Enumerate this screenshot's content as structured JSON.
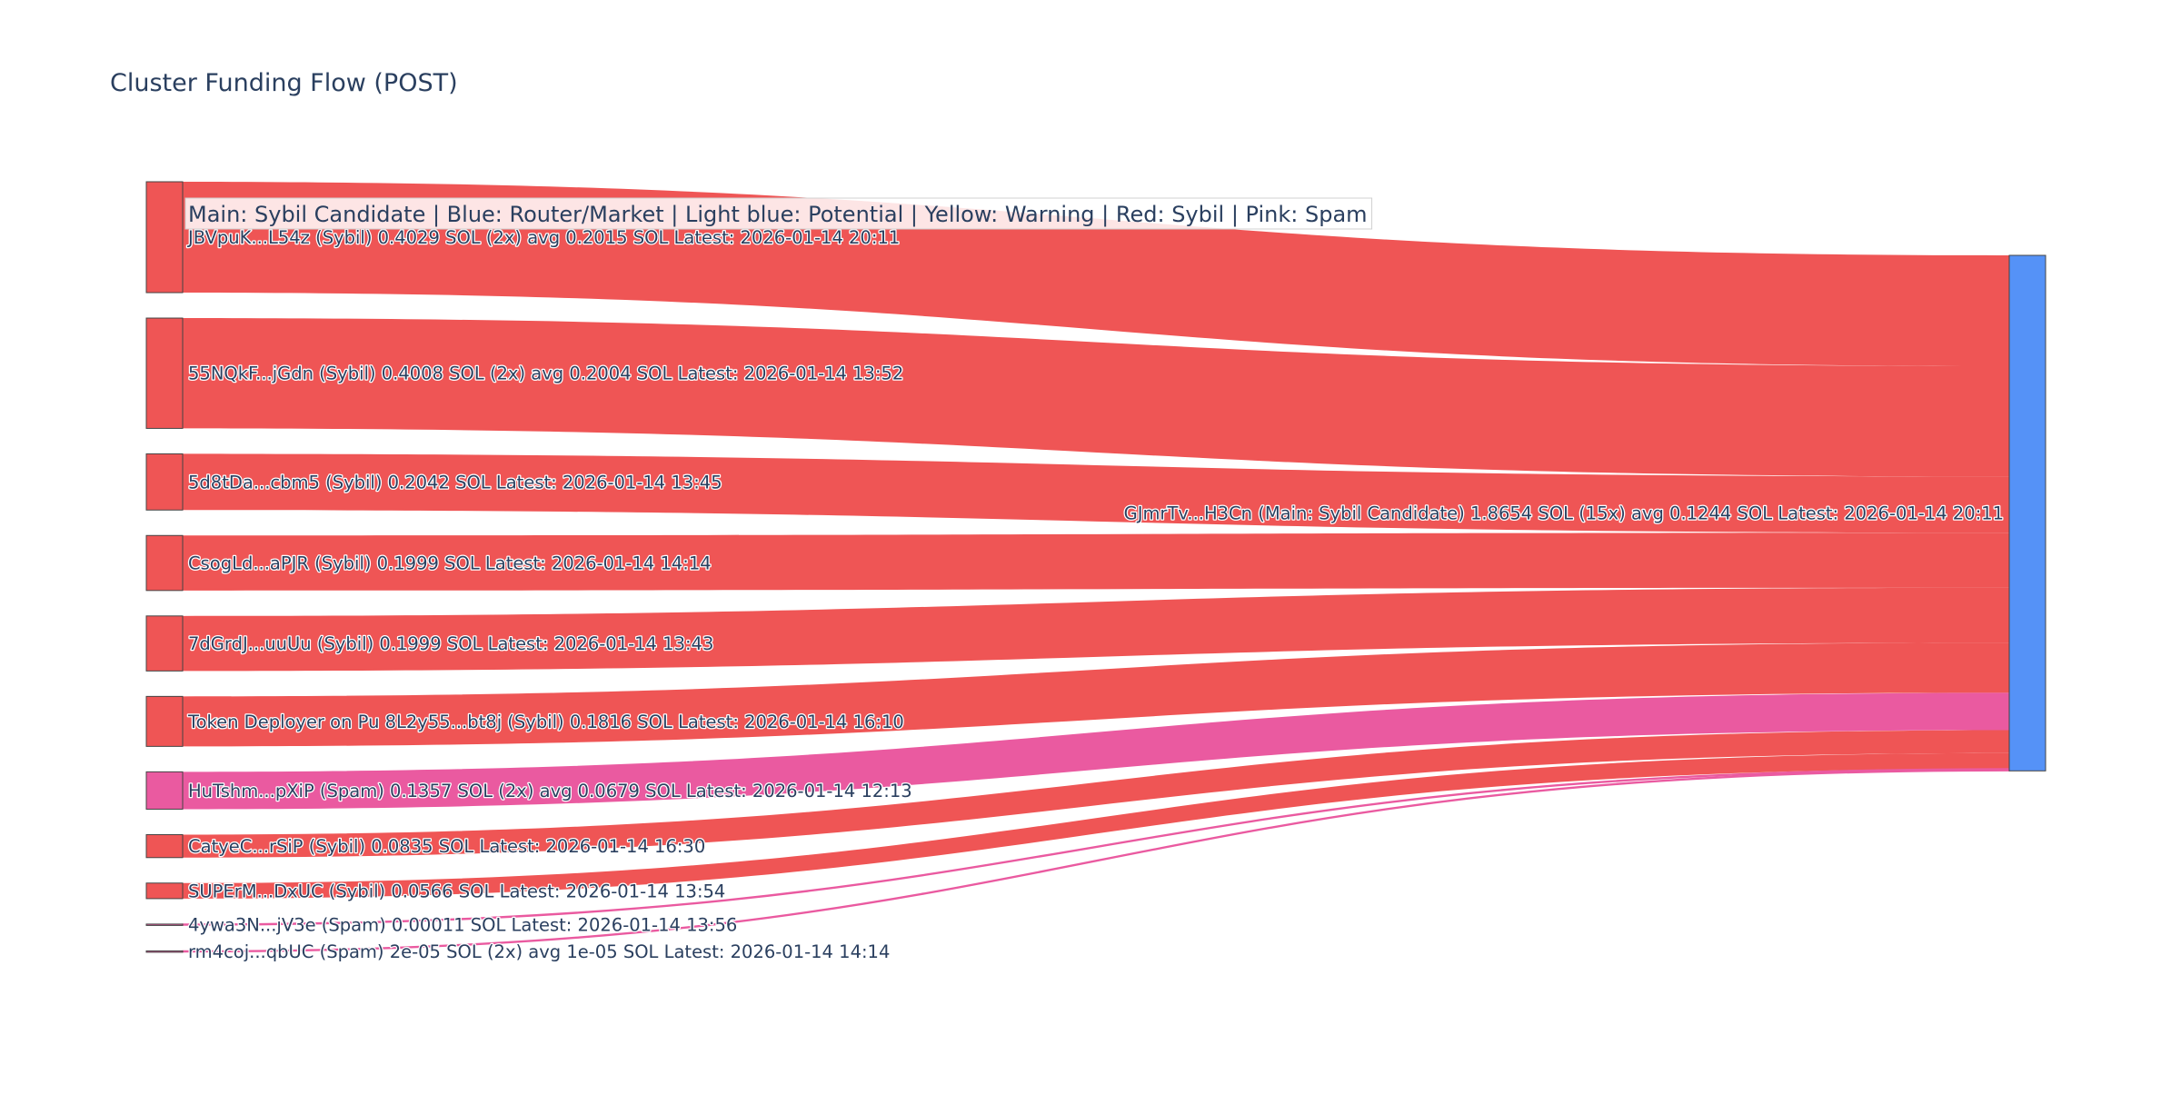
{
  "chart_data": {
    "type": "sankey",
    "title": "Cluster Funding Flow (POST)",
    "annotation": "Main: Sybil Candidate  |  Blue: Router/Market | Light blue: Potential | Yellow: Warning | Red: Sybil | Pink: Spam",
    "colors": {
      "Sybil": "#ef5555",
      "Spam": "#ea5aa0",
      "Main": "#5592f7"
    },
    "target": {
      "label": "GJmrTv...H3Cn (Main: Sybil Candidate) 1.8654 SOL (15x) avg 0.1244 SOL Latest: 2026-01-14 20:11",
      "category": "Main",
      "value": 1.8654
    },
    "sources": [
      {
        "label": "JBVpuK...L54z (Sybil) 0.4029 SOL (2x) avg 0.2015 SOL Latest: 2026-01-14 20:11",
        "category": "Sybil",
        "value": 0.4029
      },
      {
        "label": "55NQkF...jGdn (Sybil) 0.4008 SOL (2x) avg 0.2004 SOL Latest: 2026-01-14 13:52",
        "category": "Sybil",
        "value": 0.4008
      },
      {
        "label": "5d8tDa...cbm5 (Sybil) 0.2042 SOL Latest: 2026-01-14 13:45",
        "category": "Sybil",
        "value": 0.2042
      },
      {
        "label": "CsogLd...aPJR (Sybil) 0.1999 SOL Latest: 2026-01-14 14:14",
        "category": "Sybil",
        "value": 0.1999
      },
      {
        "label": "7dGrdJ...uuUu (Sybil) 0.1999 SOL Latest: 2026-01-14 13:43",
        "category": "Sybil",
        "value": 0.1999
      },
      {
        "label": "Token Deployer on Pu 8L2y55...bt8j (Sybil) 0.1816 SOL Latest: 2026-01-14 16:10",
        "category": "Sybil",
        "value": 0.1816
      },
      {
        "label": "HuTshm...pXiP (Spam) 0.1357 SOL (2x) avg 0.0679 SOL Latest: 2026-01-14 12:13",
        "category": "Spam",
        "value": 0.1357
      },
      {
        "label": "CatyeC...rSiP (Sybil) 0.0835 SOL Latest: 2026-01-14 16:30",
        "category": "Sybil",
        "value": 0.0835
      },
      {
        "label": "SUPErM...DxUC (Sybil) 0.0566 SOL Latest: 2026-01-14 13:54",
        "category": "Sybil",
        "value": 0.0566
      },
      {
        "label": "4ywa3N...jV3e (Spam) 0.00011 SOL Latest: 2026-01-14 13:56",
        "category": "Spam",
        "value": 0.00011
      },
      {
        "label": "rm4coj...qbUC (Spam) 2e-05 SOL (2x) avg 1e-05 SOL Latest: 2026-01-14 14:14",
        "category": "Spam",
        "value": 2e-05
      }
    ]
  }
}
